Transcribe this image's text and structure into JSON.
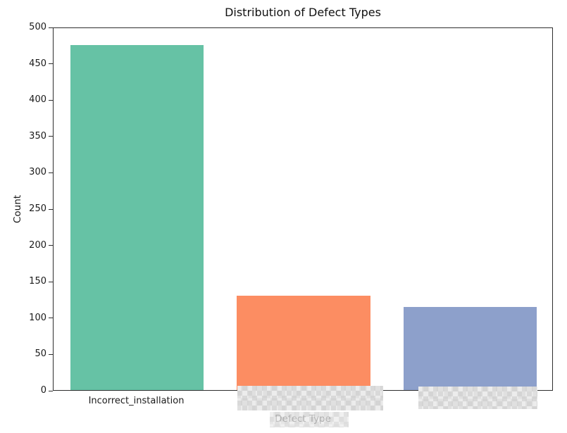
{
  "chart_data": {
    "type": "bar",
    "title": "Distribution of Defect Types",
    "xlabel": "Defect Type",
    "ylabel": "Count",
    "categories": [
      "Incorrect_installation",
      "",
      ""
    ],
    "values": [
      477,
      130,
      115
    ],
    "bar_colors": [
      "#66c2a5",
      "#fc8d62",
      "#8da0cb"
    ],
    "ylim": [
      0,
      500
    ],
    "yticks": [
      0,
      50,
      100,
      150,
      200,
      250,
      300,
      350,
      400,
      450,
      500
    ],
    "grid": false,
    "legend": "none",
    "obscured_regions": [
      "x tick label of bar 2 (pixelated mosaic)",
      "x tick label of bar 3 (pixelated mosaic)",
      "center of x-axis label partially pixelated"
    ]
  }
}
